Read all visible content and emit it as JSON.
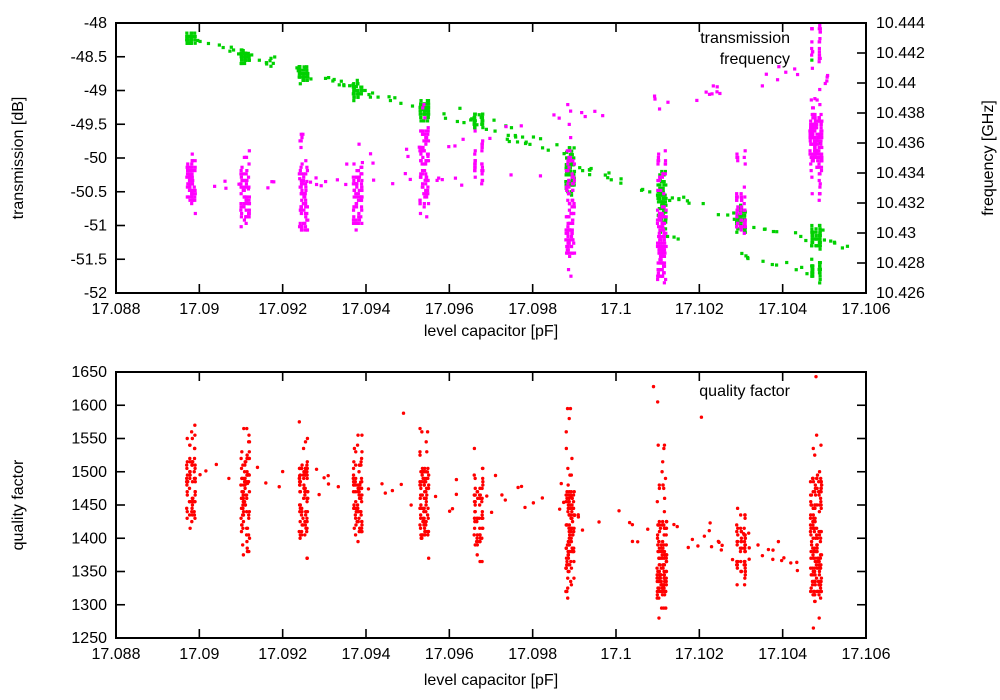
{
  "figure": {
    "background": "#ffffff",
    "text_color": "#000000"
  },
  "chart_data": [
    {
      "type": "scatter",
      "x": {
        "label": "level capacitor [pF]",
        "min": 17.088,
        "max": 17.106,
        "tick_labels": [
          "17.088",
          "17.09",
          "17.092",
          "17.094",
          "17.096",
          "17.098",
          "17.1",
          "17.102",
          "17.104",
          "17.106"
        ]
      },
      "y": {
        "label": "transmission [dB]",
        "min": -52,
        "max": -48,
        "tick_labels": [
          "-48",
          "-48.5",
          "-49",
          "-49.5",
          "-50",
          "-50.5",
          "-51",
          "-51.5",
          "-52"
        ]
      },
      "y2": {
        "label": "frequency [GHz]",
        "min": 10.426,
        "max": 10.444,
        "tick_labels": [
          "10.444",
          "10.442",
          "10.44",
          "10.438",
          "10.436",
          "10.434",
          "10.432",
          "10.43",
          "10.428",
          "10.426"
        ]
      },
      "legend": [
        "transmission",
        "frequency"
      ],
      "legend_position": "top-right-inside",
      "grid": false,
      "series": [
        {
          "name": "transmission",
          "color": "#00d000",
          "axis": "y",
          "marker": "square",
          "seed": 101,
          "q": 0.05,
          "clusters": [
            {
              "x": 17.0898,
              "n": 40,
              "r": [
                -48.33,
                -48.14
              ],
              "c": [
                -48.3,
                -48.17
              ]
            },
            {
              "x": 17.0911,
              "n": 42,
              "r": [
                -48.66,
                -48.36
              ],
              "c": [
                -48.58,
                -48.4
              ]
            },
            {
              "x": 17.0925,
              "n": 46,
              "r": [
                -48.92,
                -48.58
              ],
              "c": [
                -48.85,
                -48.63
              ]
            },
            {
              "x": 17.0938,
              "n": 42,
              "r": [
                -49.17,
                -48.83
              ],
              "c": [
                -49.1,
                -48.9
              ]
            },
            {
              "x": 17.0954,
              "n": 52,
              "r": [
                -49.5,
                -49.08
              ],
              "c": [
                -49.42,
                -49.15
              ]
            },
            {
              "x": 17.0967,
              "n": 36,
              "r": [
                -49.62,
                -49.28
              ],
              "c": [
                -49.55,
                -49.33
              ]
            },
            {
              "x": 17.0989,
              "n": 72,
              "r": [
                -50.56,
                -49.82
              ],
              "c": [
                -50.45,
                -49.95
              ]
            },
            {
              "x": 17.1011,
              "n": 85,
              "r": [
                -51.1,
                -50.2
              ],
              "c": [
                -50.95,
                -50.35
              ]
            },
            {
              "x": 17.103,
              "n": 48,
              "r": [
                -51.15,
                -50.62
              ],
              "c": [
                -51.08,
                -50.72
              ]
            },
            {
              "x": 17.1048,
              "n": 50,
              "r": [
                -51.38,
                -50.98
              ],
              "c": [
                -51.3,
                -51.05
              ]
            },
            {
              "x": 17.1048,
              "n": 38,
              "r": [
                -51.85,
                -51.5
              ],
              "c": [
                -51.78,
                -51.55
              ]
            }
          ],
          "bands": [
            [
              17.0899,
              17.0911,
              -48.25,
              -48.45,
              10,
              0.05
            ],
            [
              17.0911,
              17.0925,
              -48.5,
              -48.72,
              10,
              0.06
            ],
            [
              17.0913,
              17.0938,
              -48.42,
              -48.95,
              9,
              0.03
            ],
            [
              17.0925,
              17.0938,
              -48.75,
              -48.98,
              10,
              0.06
            ],
            [
              17.0938,
              17.0954,
              -49.0,
              -49.28,
              12,
              0.06
            ],
            [
              17.0954,
              17.0967,
              -49.3,
              -49.5,
              9,
              0.06
            ],
            [
              17.0956,
              17.0989,
              -49.12,
              -49.85,
              10,
              0.04
            ],
            [
              17.0967,
              17.0989,
              -49.55,
              -49.95,
              16,
              0.08
            ],
            [
              17.0989,
              17.1011,
              -50.1,
              -50.5,
              16,
              0.1
            ],
            [
              17.1011,
              17.103,
              -50.55,
              -50.9,
              12,
              0.08
            ],
            [
              17.103,
              17.1048,
              -50.95,
              -51.2,
              10,
              0.07
            ],
            [
              17.1011,
              17.1048,
              -51.15,
              -51.7,
              14,
              0.06
            ],
            [
              17.1048,
              17.1056,
              -51.1,
              -51.35,
              8,
              0.1
            ]
          ],
          "points": [
            [
              17.1047,
              -48.55
            ],
            [
              17.1049,
              -49.78
            ]
          ]
        },
        {
          "name": "frequency",
          "color": "#ff00ff",
          "axis": "y2",
          "marker": "square",
          "seed": 202,
          "q": 0.00022,
          "clusters": [
            {
              "x": 17.0898,
              "n": 60,
              "r": [
                10.4312,
                10.4353
              ],
              "c": [
                10.432,
                10.4345
              ]
            },
            {
              "x": 17.0911,
              "n": 68,
              "r": [
                10.4303,
                10.4355
              ],
              "c": [
                10.431,
                10.4345
              ]
            },
            {
              "x": 17.0925,
              "n": 72,
              "r": [
                10.4297,
                10.4367
              ],
              "c": [
                10.4301,
                10.4345
              ]
            },
            {
              "x": 17.0938,
              "n": 68,
              "r": [
                10.4301,
                10.4362
              ],
              "c": [
                10.4305,
                10.4348
              ]
            },
            {
              "x": 17.0954,
              "n": 76,
              "r": [
                10.431,
                10.4392
              ],
              "c": [
                10.4318,
                10.4368
              ]
            },
            {
              "x": 17.0967,
              "n": 30,
              "r": [
                10.4329,
                10.4369
              ],
              "c": [
                10.4333,
                10.4362
              ]
            },
            {
              "x": 17.0989,
              "n": 110,
              "r": [
                10.4272,
                10.4392
              ],
              "c": [
                10.4285,
                10.4355
              ]
            },
            {
              "x": 17.1011,
              "n": 125,
              "r": [
                10.426,
                10.4341
              ],
              "c": [
                10.4268,
                10.4318
              ]
            },
            {
              "x": 17.1011,
              "n": 10,
              "r": [
                10.4337,
                10.4355
              ]
            },
            {
              "x": 17.103,
              "n": 46,
              "r": [
                10.4298,
                10.4335
              ],
              "c": [
                10.4303,
                10.4326
              ]
            },
            {
              "x": 17.103,
              "n": 7,
              "r": [
                10.4345,
                10.4357
              ]
            },
            {
              "x": 17.1048,
              "n": 150,
              "r": [
                10.4341,
                10.4385
              ],
              "c": [
                10.4348,
                10.4378
              ],
              "dx": 0.00013
            },
            {
              "x": 17.1048,
              "n": 26,
              "r": [
                10.4408,
                10.4444
              ],
              "c": [
                10.4415,
                10.4438
              ]
            },
            {
              "x": 17.1048,
              "n": 12,
              "r": [
                10.4318,
                10.4341
              ]
            }
          ],
          "bands": [
            [
              17.09,
              17.0989,
              10.4332,
              10.4338,
              30,
              0.0005
            ],
            [
              17.0935,
              17.1045,
              10.4345,
              10.4408,
              40,
              0.0007
            ],
            [
              17.1046,
              17.1051,
              10.4385,
              10.4405,
              8,
              0.0008
            ]
          ],
          "points": []
        }
      ]
    },
    {
      "type": "scatter",
      "x": {
        "label": "level capacitor [pF]",
        "min": 17.088,
        "max": 17.106,
        "tick_labels": [
          "17.088",
          "17.09",
          "17.092",
          "17.094",
          "17.096",
          "17.098",
          "17.1",
          "17.102",
          "17.104",
          "17.106"
        ]
      },
      "y": {
        "label": "quality factor",
        "min": 1250,
        "max": 1650,
        "tick_labels": [
          "1650",
          "1600",
          "1550",
          "1500",
          "1450",
          "1400",
          "1350",
          "1300",
          "1250"
        ]
      },
      "legend": [
        "quality factor"
      ],
      "legend_position": "top-right-inside",
      "grid": false,
      "series": [
        {
          "name": "quality factor",
          "color": "#ff0000",
          "axis": "y",
          "marker": "circle",
          "seed": 303,
          "q": 5,
          "clusters": [
            {
              "x": 17.0898,
              "n": 70,
              "r": [
                1384,
                1571
              ],
              "c": [
                1420,
                1520
              ]
            },
            {
              "x": 17.0911,
              "n": 80,
              "r": [
                1374,
                1568
              ],
              "c": [
                1415,
                1520
              ]
            },
            {
              "x": 17.0925,
              "n": 76,
              "r": [
                1366,
                1560
              ],
              "c": [
                1405,
                1510
              ]
            },
            {
              "x": 17.0938,
              "n": 76,
              "r": [
                1374,
                1563
              ],
              "c": [
                1410,
                1515
              ]
            },
            {
              "x": 17.0954,
              "n": 85,
              "r": [
                1359,
                1567
              ],
              "c": [
                1400,
                1510
              ]
            },
            {
              "x": 17.0967,
              "n": 60,
              "r": [
                1352,
                1545
              ],
              "c": [
                1390,
                1490
              ]
            },
            {
              "x": 17.0989,
              "n": 110,
              "r": [
                1307,
                1597
              ],
              "c": [
                1330,
                1470
              ]
            },
            {
              "x": 17.1011,
              "n": 130,
              "r": [
                1280,
                1543
              ],
              "c": [
                1310,
                1430
              ],
              "dx": 0.0001
            },
            {
              "x": 17.103,
              "n": 55,
              "r": [
                1329,
                1445
              ],
              "c": [
                1340,
                1420
              ]
            },
            {
              "x": 17.1048,
              "n": 160,
              "r": [
                1265,
                1566
              ],
              "c": [
                1310,
                1490
              ],
              "dx": 0.00012
            }
          ],
          "bands": [
            [
              17.09,
              17.099,
              1500,
              1450,
              45,
              45
            ],
            [
              17.099,
              17.1046,
              1430,
              1375,
              40,
              30
            ]
          ],
          "points": [
            [
              17.101,
              1605
            ],
            [
              17.1048,
              1643
            ],
            [
              17.0949,
              1588
            ],
            [
              17.1009,
              1628
            ],
            [
              17.0924,
              1575
            ],
            [
              17.10205,
              1582
            ]
          ]
        }
      ]
    }
  ]
}
